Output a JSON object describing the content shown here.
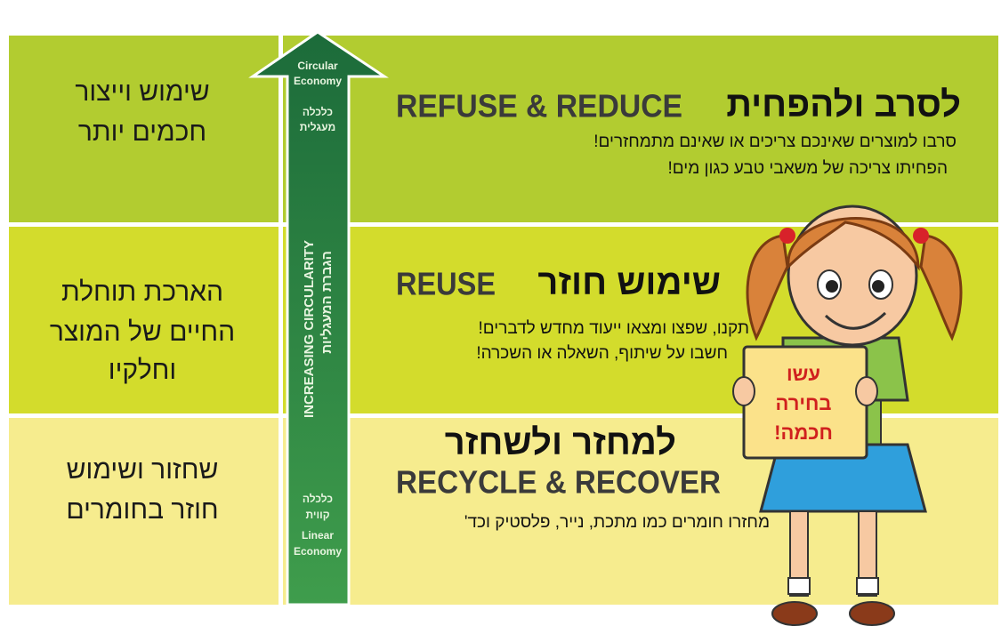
{
  "arrow": {
    "top_en": [
      "Circular",
      "Economy"
    ],
    "top_he": [
      "כלכלה",
      "מעגלית"
    ],
    "vertical_en": "INCREASING CIRCULARITY",
    "vertical_he": "הגברת המעגליות",
    "bottom_he": [
      "כלכלה",
      "קווית"
    ],
    "bottom_en": [
      "Linear",
      "Economy"
    ]
  },
  "rows": [
    {
      "left": [
        "שימוש וייצור",
        "חכמים יותר"
      ],
      "heading_en": "REFUSE & REDUCE",
      "heading_he": "לסרב ולהפחית",
      "body": [
        "סרבו למוצרים שאינכם צריכים או שאינם  מתמחזרים!",
        "הפחיתו צריכה של משאבי טבע כגון מים!"
      ]
    },
    {
      "left": [
        "הארכת תוחלת",
        "החיים של המוצר",
        "וחלקיו"
      ],
      "heading_en": "REUSE",
      "heading_he": "שימוש חוזר",
      "body": [
        "תקנו, שפצו ומצאו ייעוד מחדש לדברים!",
        "חשבו על שיתוף, השאלה או השכרה!"
      ]
    },
    {
      "left": [
        "שחזור ושימוש",
        "חוזר בחומרים"
      ],
      "heading_en": "RECYCLE & RECOVER",
      "heading_he": "למחזר ולשחזר",
      "body": [
        "מחזרו חומרים כמו מתכת, נייר, פלסטיק וכד'"
      ]
    }
  ],
  "sign": [
    "עשו",
    "בחירה",
    "חכמה!"
  ]
}
